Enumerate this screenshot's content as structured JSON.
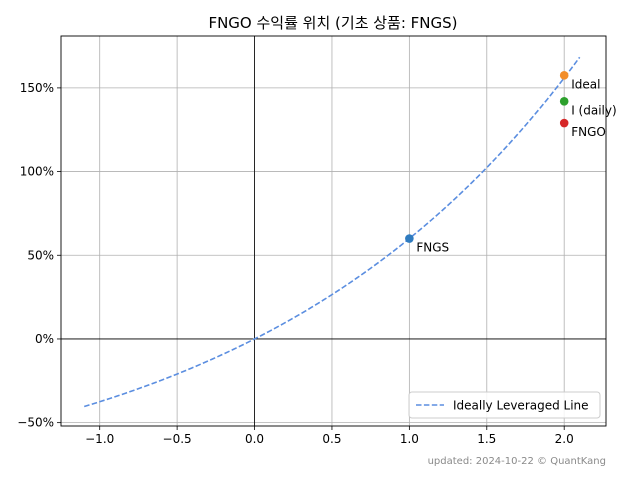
{
  "chart_data": {
    "type": "scatter",
    "title": "FNGO 수익률 위치 (기초 상품: FNGS)",
    "xlabel": "",
    "ylabel": "",
    "xlim": [
      -1.25,
      2.27
    ],
    "ylim": [
      -0.52,
      1.81
    ],
    "x_ticks": [
      -1.0,
      -0.5,
      0.0,
      0.5,
      1.0,
      1.5,
      2.0
    ],
    "x_tick_labels": [
      "−1.0",
      "−0.5",
      "0.0",
      "0.5",
      "1.0",
      "1.5",
      "2.0"
    ],
    "y_ticks": [
      -0.5,
      0.0,
      0.5,
      1.0,
      1.5
    ],
    "y_tick_labels": [
      "−50%",
      "0%",
      "50%",
      "100%",
      "150%"
    ],
    "grid": true,
    "legend_position": "bottom-right",
    "curve": {
      "name": "Ideally Leveraged Line",
      "color": "#5b8ee0",
      "style": "dashed",
      "base_return": 0.6,
      "x_range": [
        -1.1,
        2.1
      ]
    },
    "points": [
      {
        "label": "FNGS",
        "x": 1.0,
        "y": 0.6,
        "color": "#2f7bbf"
      },
      {
        "label": "Ideal",
        "x": 2.0,
        "y": 1.575,
        "color": "#f28e2b"
      },
      {
        "label": "I (daily)",
        "x": 2.0,
        "y": 1.42,
        "color": "#2ca02c"
      },
      {
        "label": "FNGO",
        "x": 2.0,
        "y": 1.29,
        "color": "#d62728"
      }
    ]
  },
  "footer": {
    "text": "updated: 2024-10-22 © QuantKang"
  }
}
